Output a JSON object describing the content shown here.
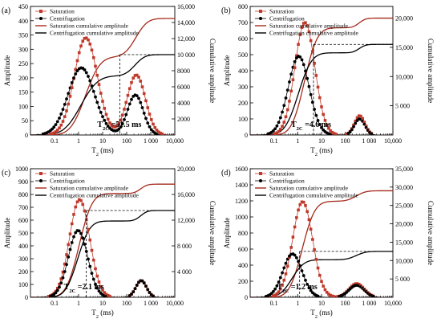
{
  "figure": {
    "x_axis_title_main": "T",
    "x_axis_title_sub": "2",
    "x_axis_title_unit": " (ms)",
    "y_left_title": "Amplitude",
    "y_right_title": "Cumulative amplitude",
    "colors": {
      "saturation": "#c0392b",
      "centrifugation": "#000000",
      "saturation_cumulative": "#a52a1c",
      "centrifugation_cumulative": "#000000",
      "dashed_guides": "#000000"
    }
  },
  "chart_data": [
    {
      "panel_label": "(a)",
      "type": "line",
      "x_scale": "log",
      "xlim": [
        0.01,
        10000
      ],
      "x_tick_values": [
        0.1,
        1,
        10,
        100,
        1000,
        10000
      ],
      "x_tick_labels": [
        "0.1",
        "1",
        "10",
        "100",
        "1 000",
        "10,000"
      ],
      "ylim_left": [
        0,
        450
      ],
      "y_left_ticks": [
        0,
        50,
        100,
        150,
        200,
        250,
        300,
        350,
        400,
        450
      ],
      "y_left_tick_labels": [
        "0",
        "50",
        "100",
        "150",
        "200",
        "250",
        "300",
        "350",
        "400",
        "450"
      ],
      "ylim_right": [
        0,
        16000
      ],
      "y_right_ticks": [
        2000,
        4000,
        6000,
        8000,
        10000,
        12000,
        14000,
        16000
      ],
      "y_right_tick_labels": [
        "2000",
        "4000",
        "6000",
        "8000",
        "10 000",
        "12,000",
        "14,000",
        "16,000"
      ],
      "legend_position": "top-left",
      "legend": [
        "Saturation",
        "Centrifugation",
        "Saturation cumulative amplitude",
        "Centrifugation cumulative amplitude"
      ],
      "t2c_text": "T",
      "t2c_sub": "2C",
      "t2c_value": " =51.5 ms",
      "t2c_ms": 51.5,
      "cutoff_cumulative": 10000,
      "series": [
        {
          "name": "Saturation",
          "kind": "marker-square-line",
          "axis": "left",
          "peaks": [
            {
              "center": 2.0,
              "height": 340,
              "width_decades": 0.48
            },
            {
              "center": 250,
              "height": 210,
              "width_decades": 0.38
            }
          ]
        },
        {
          "name": "Centrifugation",
          "kind": "marker-circle-line",
          "axis": "left",
          "peaks": [
            {
              "center": 1.3,
              "height": 235,
              "width_decades": 0.55
            },
            {
              "center": 230,
              "height": 140,
              "width_decades": 0.33
            }
          ]
        },
        {
          "name": "Saturation cumulative amplitude",
          "kind": "line",
          "axis": "right",
          "final_value": 14500
        },
        {
          "name": "Centrifugation cumulative amplitude",
          "kind": "line",
          "axis": "right",
          "final_value": 10000
        }
      ]
    },
    {
      "panel_label": "(b)",
      "type": "line",
      "x_scale": "log",
      "xlim": [
        0.01,
        10000
      ],
      "x_tick_values": [
        0.1,
        1,
        10,
        100,
        1000,
        10000
      ],
      "x_tick_labels": [
        "0.1",
        "1",
        "10",
        "100",
        "1 000",
        "10,000"
      ],
      "ylim_left": [
        0,
        800
      ],
      "y_left_ticks": [
        0,
        100,
        200,
        300,
        400,
        500,
        600,
        700,
        800
      ],
      "y_left_tick_labels": [
        "0",
        "100",
        "200",
        "300",
        "400",
        "500",
        "600",
        "700",
        "800"
      ],
      "ylim_right": [
        0,
        22000
      ],
      "y_right_ticks": [
        5000,
        10000,
        15000,
        20000
      ],
      "y_right_tick_labels": [
        "5 000",
        "10,000",
        "15,000",
        "20,000"
      ],
      "legend_position": "top-left",
      "legend": [
        "Saturation",
        "Centrifugation",
        "Saturation cumulative amplitude",
        "Centrifugation cumulative amplitude"
      ],
      "t2c_text": "T",
      "t2c_sub": "2C",
      "t2c_value": " =4.6 ms",
      "t2c_ms": 4.6,
      "cutoff_cumulative": 15500,
      "series": [
        {
          "name": "Saturation",
          "kind": "marker-square-line",
          "axis": "left",
          "peaks": [
            {
              "center": 2.0,
              "height": 700,
              "width_decades": 0.42
            },
            {
              "center": 400,
              "height": 120,
              "width_decades": 0.22
            }
          ]
        },
        {
          "name": "Centrifugation",
          "kind": "marker-circle-line",
          "axis": "left",
          "peaks": [
            {
              "center": 1.1,
              "height": 490,
              "width_decades": 0.44
            },
            {
              "center": 400,
              "height": 100,
              "width_decades": 0.22
            }
          ]
        },
        {
          "name": "Saturation cumulative amplitude",
          "kind": "line",
          "axis": "right",
          "final_value": 20000
        },
        {
          "name": "Centrifugation cumulative amplitude",
          "kind": "line",
          "axis": "right",
          "final_value": 15500
        }
      ]
    },
    {
      "panel_label": "(c)",
      "type": "line",
      "x_scale": "log",
      "xlim": [
        0.01,
        10000
      ],
      "x_tick_values": [
        0.1,
        1,
        10,
        100,
        1000,
        10000
      ],
      "x_tick_labels": [
        "0.1",
        "1",
        "10",
        "100",
        "1 000",
        "10,000"
      ],
      "ylim_left": [
        0,
        1000
      ],
      "y_left_ticks": [
        0,
        100,
        200,
        300,
        400,
        500,
        600,
        700,
        800,
        900,
        1000
      ],
      "y_left_tick_labels": [
        "0",
        "100",
        "200",
        "300",
        "400",
        "500",
        "600",
        "700",
        "800",
        "900",
        "1000"
      ],
      "ylim_right": [
        0,
        20000
      ],
      "y_right_ticks": [
        4000,
        8000,
        12000,
        16000,
        20000
      ],
      "y_right_tick_labels": [
        "4 000",
        "8 000",
        "12,000",
        "16,000",
        "20,000"
      ],
      "legend_position": "top-left",
      "legend": [
        "Saturation",
        "Centrifugation",
        "Saturation cumulative amplitude",
        "Centrifugation cumulative amplitude"
      ],
      "t2c_text": "T",
      "t2c_sub": "2C",
      "t2c_value": " =2.1 ms",
      "t2c_ms": 2.1,
      "cutoff_cumulative": 13500,
      "series": [
        {
          "name": "Saturation",
          "kind": "marker-square-line",
          "axis": "left",
          "peaks": [
            {
              "center": 1.1,
              "height": 760,
              "width_decades": 0.42
            },
            {
              "center": 400,
              "height": 130,
              "width_decades": 0.22
            }
          ]
        },
        {
          "name": "Centrifugation",
          "kind": "marker-circle-line",
          "axis": "left",
          "peaks": [
            {
              "center": 0.95,
              "height": 520,
              "width_decades": 0.4
            },
            {
              "center": 400,
              "height": 130,
              "width_decades": 0.22
            }
          ]
        },
        {
          "name": "Saturation cumulative amplitude",
          "kind": "line",
          "axis": "right",
          "final_value": 17600
        },
        {
          "name": "Centrifugation cumulative amplitude",
          "kind": "line",
          "axis": "right",
          "final_value": 13500
        }
      ]
    },
    {
      "panel_label": "(d)",
      "type": "line",
      "x_scale": "log",
      "xlim": [
        0.01,
        10000
      ],
      "x_tick_values": [
        0.1,
        1,
        10,
        100,
        1000,
        10000
      ],
      "x_tick_labels": [
        "0.1",
        "1",
        "10",
        "100",
        "1 000",
        "10,000"
      ],
      "ylim_left": [
        0,
        1600
      ],
      "y_left_ticks": [
        0,
        200,
        400,
        600,
        800,
        1000,
        1200,
        1400,
        1600
      ],
      "y_left_tick_labels": [
        "0",
        "200",
        "400",
        "600",
        "800",
        "1000",
        "1200",
        "1400",
        "1600"
      ],
      "ylim_right": [
        0,
        35000
      ],
      "y_right_ticks": [
        5000,
        10000,
        15000,
        20000,
        25000,
        30000,
        35000
      ],
      "y_right_tick_labels": [
        "5 000",
        "10,000",
        "15,000",
        "20,000",
        "25,000",
        "30,000",
        "35,000"
      ],
      "legend_position": "top-left",
      "legend": [
        "Saturation",
        "Centrifugation",
        "Saturation cumulative amplitude",
        "Centrifugation cumulative amplitude"
      ],
      "t2c_text": "T",
      "t2c_sub": "2C",
      "t2c_value": " =1.2 ms",
      "t2c_ms": 1.2,
      "cutoff_cumulative": 12500,
      "series": [
        {
          "name": "Saturation",
          "kind": "marker-square-line",
          "axis": "left",
          "peaks": [
            {
              "center": 1.6,
              "height": 1190,
              "width_decades": 0.42
            },
            {
              "center": 300,
              "height": 170,
              "width_decades": 0.32
            }
          ]
        },
        {
          "name": "Centrifugation",
          "kind": "marker-circle-line",
          "axis": "left",
          "peaks": [
            {
              "center": 0.6,
              "height": 540,
              "width_decades": 0.4
            },
            {
              "center": 300,
              "height": 150,
              "width_decades": 0.32
            }
          ]
        },
        {
          "name": "Saturation cumulative amplitude",
          "kind": "line",
          "axis": "right",
          "final_value": 29000
        },
        {
          "name": "Centrifugation cumulative amplitude",
          "kind": "line",
          "axis": "right",
          "final_value": 12500
        }
      ]
    }
  ]
}
